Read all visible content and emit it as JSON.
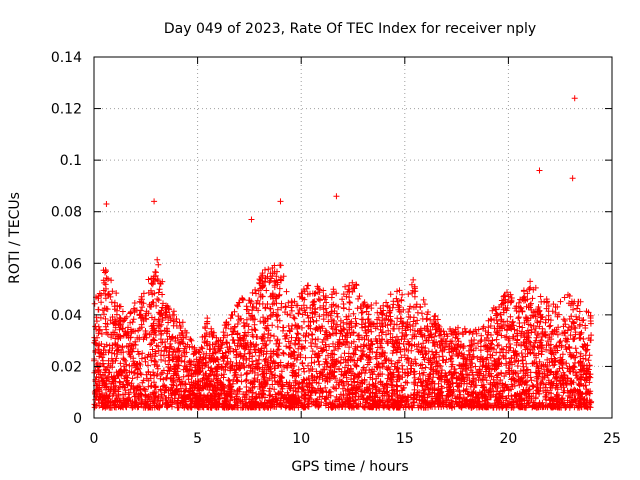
{
  "chart_data": {
    "type": "scatter",
    "title": "Day 049 of 2023, Rate Of TEC Index for receiver nply",
    "xlabel": "GPS time / hours",
    "ylabel": "ROTI / TECUs",
    "xlim": [
      0,
      25
    ],
    "ylim": [
      0,
      0.14
    ],
    "xticks": [
      0,
      5,
      10,
      15,
      20,
      25
    ],
    "xtick_labels": [
      "0",
      "5",
      "10",
      "15",
      "20",
      "25"
    ],
    "yticks": [
      0,
      0.02,
      0.04,
      0.06,
      0.08,
      0.1,
      0.12,
      0.14
    ],
    "ytick_labels": [
      "0",
      "0.02",
      "0.04",
      "0.06",
      "0.08",
      "0.1",
      "0.12",
      "0.14"
    ],
    "grid": true,
    "marker": "+",
    "color": "#ff0000",
    "density_envelope": {
      "x": [
        0,
        0.5,
        1,
        1.5,
        2,
        2.5,
        3,
        3.5,
        4,
        4.5,
        5,
        5.5,
        6,
        6.5,
        7,
        7.5,
        8,
        8.5,
        9,
        9.5,
        10,
        10.5,
        11,
        11.5,
        12,
        12.5,
        13,
        13.5,
        14,
        14.5,
        15,
        15.5,
        16,
        16.5,
        17,
        17.5,
        18,
        18.5,
        19,
        19.5,
        20,
        20.5,
        21,
        21.5,
        22,
        22.5,
        23,
        23.5,
        24
      ],
      "upper": [
        0.045,
        0.06,
        0.05,
        0.04,
        0.045,
        0.05,
        0.065,
        0.045,
        0.04,
        0.035,
        0.025,
        0.04,
        0.03,
        0.04,
        0.045,
        0.05,
        0.055,
        0.06,
        0.06,
        0.045,
        0.05,
        0.055,
        0.05,
        0.05,
        0.05,
        0.055,
        0.045,
        0.045,
        0.045,
        0.05,
        0.05,
        0.055,
        0.045,
        0.04,
        0.035,
        0.035,
        0.035,
        0.035,
        0.04,
        0.045,
        0.05,
        0.045,
        0.055,
        0.05,
        0.045,
        0.045,
        0.05,
        0.045,
        0.04
      ]
    },
    "notable_points": [
      {
        "x": 0.6,
        "y": 0.083
      },
      {
        "x": 2.9,
        "y": 0.084
      },
      {
        "x": 7.6,
        "y": 0.077
      },
      {
        "x": 9.0,
        "y": 0.084
      },
      {
        "x": 11.7,
        "y": 0.086
      },
      {
        "x": 21.5,
        "y": 0.096
      },
      {
        "x": 23.1,
        "y": 0.093
      },
      {
        "x": 23.2,
        "y": 0.124
      }
    ]
  }
}
